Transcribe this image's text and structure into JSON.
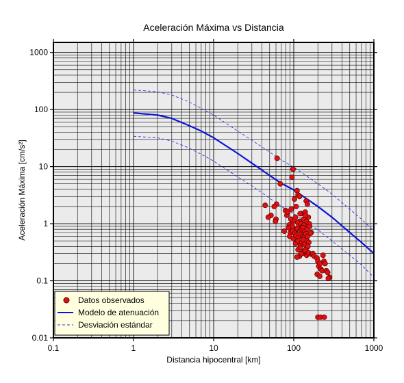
{
  "chart_data": {
    "type": "scatter",
    "title": "Aceleración Máxima vs Distancia",
    "xlabel": "Distancia hipocentral [km]",
    "ylabel": "Aceleración Máxima [cm/s²]",
    "x_scale": "log",
    "y_scale": "log",
    "xlim": [
      0.1,
      1000
    ],
    "ylim": [
      0.01,
      1500
    ],
    "grid": true,
    "x_tick_labels": [
      "0.1",
      "1",
      "10",
      "100",
      "1000"
    ],
    "y_tick_labels": [
      "0.01",
      "0.1",
      "1",
      "10",
      "100",
      "1000"
    ],
    "legend_position": "bottom-left",
    "legend": [
      {
        "label": "Datos observados",
        "marker": "circle"
      },
      {
        "label": "Modelo de atenuación",
        "marker": "line"
      },
      {
        "label": "Desviación estándar",
        "marker": "dashed"
      }
    ],
    "series": [
      {
        "name": "Modelo de atenuación",
        "style": "solid",
        "x": [
          1,
          2,
          3,
          5,
          7,
          10,
          20,
          30,
          50,
          70,
          100,
          200,
          300,
          500,
          700,
          1000
        ],
        "y": [
          87,
          80,
          70,
          52,
          42,
          32,
          17,
          11.5,
          7,
          5.1,
          3.9,
          2.0,
          1.3,
          0.7,
          0.47,
          0.3
        ]
      },
      {
        "name": "Desviación estándar",
        "style": "dashed",
        "x": [
          1,
          2,
          3,
          5,
          7,
          10,
          20,
          30,
          50,
          70,
          100,
          200,
          300,
          500,
          700,
          1000
        ],
        "y": [
          220,
          205,
          180,
          135,
          105,
          80,
          42,
          29,
          18,
          13,
          9.8,
          5,
          3.3,
          1.8,
          1.2,
          0.75
        ]
      },
      {
        "name": "Desviación estándar",
        "style": "dashed",
        "x": [
          1,
          2,
          3,
          5,
          7,
          10,
          20,
          30,
          50,
          70,
          100,
          200,
          300,
          500,
          700,
          1000
        ],
        "y": [
          34,
          32,
          28,
          21,
          16.5,
          12.5,
          6.6,
          4.6,
          2.8,
          2.0,
          1.5,
          0.78,
          0.5,
          0.28,
          0.19,
          0.115
        ]
      },
      {
        "name": "Datos observados",
        "style": "points",
        "x": [
          62,
          98,
          95,
          68,
          110,
          113,
          118,
          102,
          143,
          148,
          44,
          61,
          57,
          52,
          60,
          59,
          48,
          79,
          82,
          84,
          93,
          107,
          125,
          139,
          152,
          118,
          94,
          92,
          88,
          102,
          105,
          112,
          120,
          133,
          140,
          86,
          96,
          108,
          116,
          124,
          128,
          135,
          144,
          156,
          91,
          97,
          103,
          111,
          119,
          126,
          131,
          137,
          146,
          158,
          165,
          89,
          99,
          106,
          114,
          122,
          129,
          134,
          141,
          149,
          162,
          105,
          113,
          121,
          127,
          132,
          138,
          147,
          154,
          113,
          121,
          132,
          142,
          150,
          118,
          127,
          136,
          145,
          110,
          124,
          139,
          153,
          168,
          76,
          173,
          180,
          195,
          200,
          205,
          212,
          218,
          226,
          232,
          238,
          246,
          255,
          265,
          280,
          196,
          211,
          270,
          200,
          215,
          240
        ],
        "y": [
          14,
          9,
          6.5,
          5,
          3.8,
          3.2,
          3,
          2.7,
          2.5,
          2.2,
          2.1,
          2.2,
          2,
          1.4,
          1.2,
          1.1,
          1.3,
          1.7,
          1.4,
          1.6,
          1.8,
          2,
          1.5,
          1.6,
          1.3,
          1.1,
          1.0,
          1.2,
          0.95,
          1.15,
          1.3,
          1.05,
          1.5,
          1.2,
          1.4,
          0.85,
          0.9,
          0.8,
          0.92,
          1.0,
          0.88,
          0.95,
          1.1,
          1.0,
          0.7,
          0.75,
          0.68,
          0.82,
          0.73,
          0.79,
          0.85,
          0.74,
          0.8,
          0.9,
          0.7,
          0.6,
          0.55,
          0.62,
          0.58,
          0.65,
          0.6,
          0.57,
          0.66,
          0.6,
          0.68,
          0.45,
          0.5,
          0.42,
          0.48,
          0.52,
          0.44,
          0.5,
          0.47,
          0.35,
          0.38,
          0.32,
          0.36,
          0.4,
          0.27,
          0.3,
          0.33,
          0.28,
          0.26,
          0.3,
          0.34,
          0.31,
          0.29,
          0.74,
          0.3,
          0.27,
          0.25,
          0.22,
          0.18,
          0.2,
          0.16,
          0.15,
          0.28,
          0.22,
          0.2,
          0.15,
          0.14,
          0.115,
          0.13,
          0.12,
          0.11,
          0.023,
          0.023,
          0.023
        ]
      }
    ]
  },
  "colors": {
    "plot_bg": "#ebebeb",
    "grid": "#000000",
    "model_line": "#0a14d8",
    "dev_line": "#2a34e8",
    "marker_fill": "#e01010",
    "marker_stroke": "#5a0000",
    "legend_bg": "#ffffe0"
  }
}
